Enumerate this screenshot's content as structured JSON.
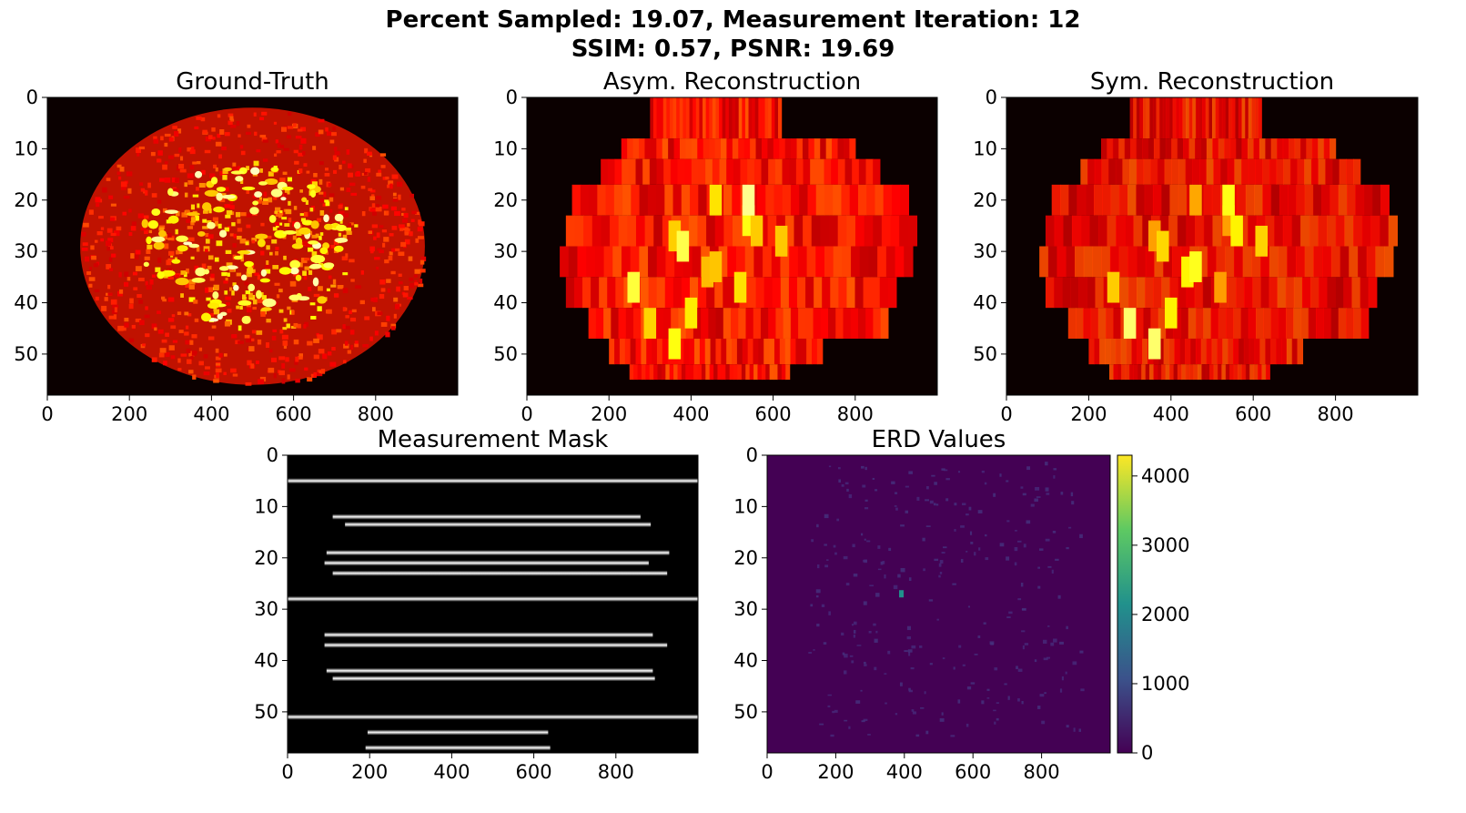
{
  "suptitle": {
    "line1": "Percent Sampled: 19.07, Measurement Iteration: 12",
    "line2": "SSIM: 0.57, PSNR: 19.69"
  },
  "chart_data": [
    {
      "type": "heatmap",
      "title": "Ground-Truth",
      "colormap": "hot",
      "xlim": [
        0,
        1000
      ],
      "ylim": [
        58,
        0
      ],
      "xticks": [
        0,
        200,
        400,
        600,
        800
      ],
      "yticks": [
        0,
        10,
        20,
        30,
        40,
        50
      ],
      "object": {
        "cx": 500,
        "cy": 29,
        "rx": 420,
        "ry": 27
      }
    },
    {
      "type": "heatmap",
      "title": "Asym. Reconstruction",
      "colormap": "hot",
      "xlim": [
        0,
        1000
      ],
      "ylim": [
        58,
        0
      ],
      "xticks": [
        0,
        200,
        400,
        600,
        800
      ],
      "yticks": [
        0,
        10,
        20,
        30,
        40,
        50
      ],
      "object": {
        "cx": 510,
        "cy": 30,
        "rx": 410,
        "ry": 26
      }
    },
    {
      "type": "heatmap",
      "title": "Sym. Reconstruction",
      "colormap": "hot",
      "xlim": [
        0,
        1000
      ],
      "ylim": [
        58,
        0
      ],
      "xticks": [
        0,
        200,
        400,
        600,
        800
      ],
      "yticks": [
        0,
        10,
        20,
        30,
        40,
        50
      ],
      "object": {
        "cx": 510,
        "cy": 30,
        "rx": 410,
        "ry": 26
      }
    },
    {
      "type": "heatmap",
      "title": "Measurement Mask",
      "colormap": "gray",
      "xlim": [
        0,
        1000
      ],
      "ylim": [
        58,
        0
      ],
      "xticks": [
        0,
        200,
        400,
        600,
        800
      ],
      "yticks": [
        0,
        10,
        20,
        30,
        40,
        50
      ],
      "lines": [
        {
          "row": 5,
          "x0": 0,
          "x1": 1000
        },
        {
          "row": 12,
          "x0": 110,
          "x1": 860
        },
        {
          "row": 13.5,
          "x0": 140,
          "x1": 885
        },
        {
          "row": 19,
          "x0": 95,
          "x1": 930
        },
        {
          "row": 21,
          "x0": 90,
          "x1": 880
        },
        {
          "row": 23,
          "x0": 110,
          "x1": 925
        },
        {
          "row": 28,
          "x0": 0,
          "x1": 1000
        },
        {
          "row": 35,
          "x0": 90,
          "x1": 890
        },
        {
          "row": 37,
          "x0": 90,
          "x1": 925
        },
        {
          "row": 42,
          "x0": 95,
          "x1": 890
        },
        {
          "row": 43.5,
          "x0": 110,
          "x1": 895
        },
        {
          "row": 51,
          "x0": 0,
          "x1": 1000
        },
        {
          "row": 54,
          "x0": 195,
          "x1": 635
        },
        {
          "row": 57,
          "x0": 190,
          "x1": 640
        }
      ]
    },
    {
      "type": "heatmap",
      "title": "ERD Values",
      "colormap": "viridis",
      "xlim": [
        0,
        1000
      ],
      "ylim": [
        58,
        0
      ],
      "xticks": [
        0,
        200,
        400,
        600,
        800
      ],
      "yticks": [
        0,
        10,
        20,
        30,
        40,
        50
      ],
      "colorbar": {
        "min": 0,
        "max": 4300,
        "ticks": [
          0,
          1000,
          2000,
          3000,
          4000
        ]
      },
      "hotspot": {
        "x": 390,
        "y": 27,
        "value": 1900
      }
    }
  ]
}
